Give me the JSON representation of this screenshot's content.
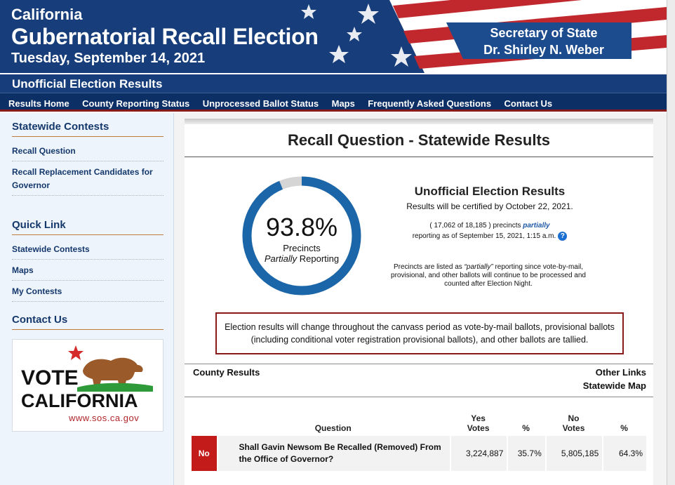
{
  "banner": {
    "title_line1": "California",
    "title_line2": "Gubernatorial Recall Election",
    "date": "Tuesday, September 14, 2021",
    "sos_line1": "Secretary of State",
    "sos_line2": "Dr. Shirley N. Weber"
  },
  "subbar": {
    "title": "Unofficial Election Results"
  },
  "nav": {
    "items": [
      "Results Home",
      "County Reporting Status",
      "Unprocessed Ballot Status",
      "Maps",
      "Frequently Asked Questions",
      "Contact Us"
    ]
  },
  "sidebar": {
    "statewide_heading": "Statewide Contests",
    "statewide_links": [
      "Recall Question",
      "Recall Replacement Candidates for Governor"
    ],
    "quick_heading": "Quick Link",
    "quick_links": [
      "Statewide Contests",
      "Maps",
      "My Contests"
    ],
    "contact_heading": "Contact Us",
    "logo": {
      "line1": "VOTE",
      "line2": "CALIFORNIA",
      "url": "www.sos.ca.gov"
    }
  },
  "main": {
    "title": "Recall Question - Statewide Results",
    "gauge": {
      "percent_text": "93.8%",
      "percent_value": 93.8,
      "line1": "Precincts",
      "line2_em": "Partially",
      "line2_rest": " Reporting"
    },
    "unofficial_title": "Unofficial Election Results",
    "certified": "Results will be certified by October 22, 2021.",
    "precincts_pre": "( 17,062 of 18,185 ) precincts ",
    "precincts_em": "partially",
    "precincts_line2": "reporting as of September 15, 2021, 1:15 a.m.",
    "help_icon": "?",
    "note_pre": "Precincts are listed as ",
    "note_em": "“partially”",
    "note_post": " reporting since vote-by-mail, provisional, and other ballots will continue to be processed and counted after Election Night.",
    "warning": "Election results will change throughout the canvass period as vote-by-mail ballots, provisional ballots (including conditional voter registration provisional ballots), and other ballots are tallied.",
    "county_results": "County Results",
    "other_links": "Other Links",
    "statewide_map": "Statewide Map"
  },
  "results": {
    "headers": {
      "question": "Question",
      "yes_votes": "Yes Votes",
      "yes_pct": "%",
      "no_votes": "No Votes",
      "no_pct": "%"
    },
    "rows": [
      {
        "outcome": "No",
        "question": "Shall Gavin Newsom Be Recalled (Removed) From the Office of Governor?",
        "yes_votes": "3,224,887",
        "yes_pct": "35.7%",
        "no_votes": "5,805,185",
        "no_pct": "64.3%"
      }
    ]
  },
  "colors": {
    "navy": "#173e7a",
    "accent_red": "#8a1a1a",
    "no_badge": "#c31a1a",
    "gauge_blue": "#1b66a8",
    "gauge_grey": "#d5d5d5"
  }
}
